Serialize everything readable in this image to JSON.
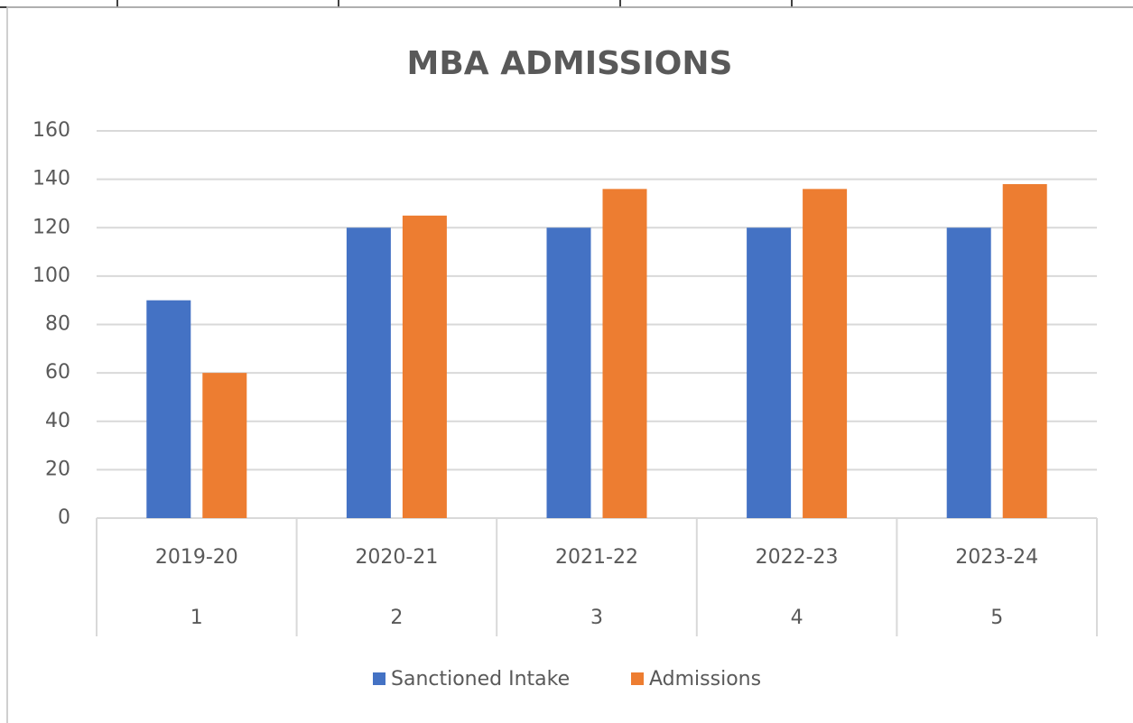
{
  "chart_data": {
    "type": "bar",
    "title": "MBA ADMISSIONS",
    "categories": [
      "2019-20",
      "2020-21",
      "2021-22",
      "2022-23",
      "2023-24"
    ],
    "subcategories": [
      "1",
      "2",
      "3",
      "4",
      "5"
    ],
    "series": [
      {
        "name": "Sanctioned Intake",
        "color": "#4472c4",
        "values": [
          90,
          120,
          120,
          120,
          120
        ]
      },
      {
        "name": "Admissions",
        "color": "#ed7d31",
        "values": [
          60,
          125,
          136,
          136,
          138
        ]
      }
    ],
    "ylim": [
      0,
      160
    ],
    "yticks": [
      0,
      20,
      40,
      60,
      80,
      100,
      120,
      140,
      160
    ],
    "grid": true,
    "legend": "bottom"
  }
}
